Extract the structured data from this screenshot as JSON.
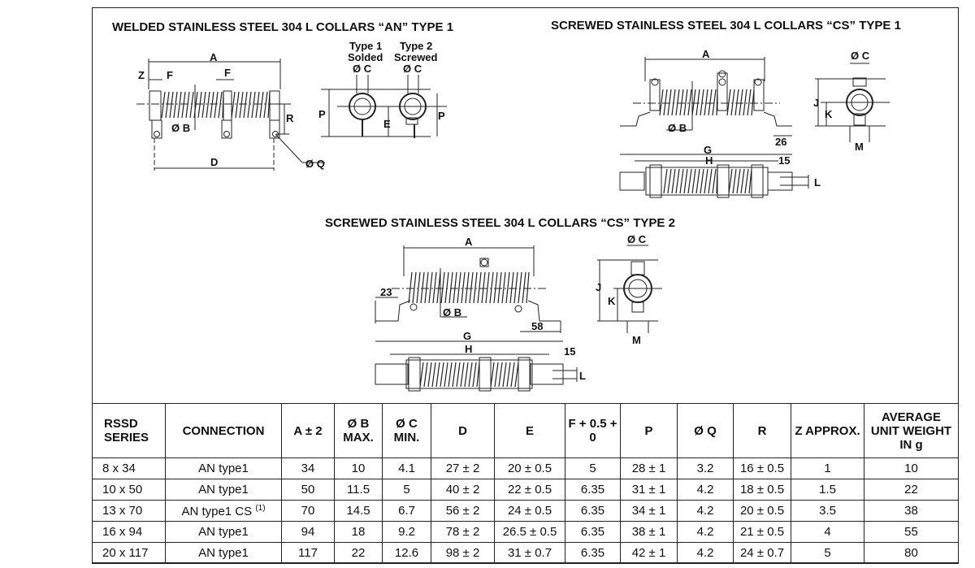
{
  "sections": {
    "an_type1": {
      "title": "WELDED STAINLESS STEEL 304 L COLLARS “AN” TYPE 1",
      "labels": {
        "A": "A",
        "Z": "Z",
        "F1": "F",
        "F2": "F",
        "R": "R",
        "B": "Ø B",
        "D": "D",
        "Q": "Ø Q",
        "P1": "P",
        "P2": "P",
        "E": "E",
        "type1": "Type 1",
        "solded": "Solded",
        "c1": "Ø C",
        "type2": "Type 2",
        "screwed": "Screwed",
        "c2": "Ø C"
      }
    },
    "cs_type1": {
      "title": "SCREWED STAINLESS STEEL 304 L COLLARS “CS” TYPE 1",
      "labels": {
        "A": "A",
        "B": "Ø B",
        "d26": "26",
        "G": "G",
        "H": "H",
        "d15": "15",
        "L": "L",
        "C": "Ø C",
        "J": "J",
        "K": "K",
        "M": "M"
      }
    },
    "cs_type2": {
      "title": "SCREWED STAINLESS STEEL 304 L COLLARS “CS” TYPE 2",
      "labels": {
        "A": "A",
        "d23": "23",
        "B": "Ø B",
        "d58": "58",
        "G": "G",
        "H": "H",
        "d15": "15",
        "L": "L",
        "C": "Ø C",
        "J": "J",
        "K": "K",
        "M": "M"
      }
    }
  },
  "table": {
    "headers": [
      "RSSD SERIES",
      "CONNECTION",
      "A ± 2",
      "Ø B MAX.",
      "Ø C MIN.",
      "D",
      "E",
      "F + 0.5 + 0",
      "P",
      "Ø Q",
      "R",
      "Z APPROX.",
      "AVERAGE UNIT WEIGHT IN g"
    ],
    "footnote_mark": "(1)",
    "rows": [
      [
        "8 x 34",
        "AN type1",
        "34",
        "10",
        "4.1",
        "27 ± 2",
        "20 ± 0.5",
        "5",
        "28 ± 1",
        "3.2",
        "16 ± 0.5",
        "1",
        "10"
      ],
      [
        "10 x 50",
        "AN type1",
        "50",
        "11.5",
        "5",
        "40 ± 2",
        "22 ± 0.5",
        "6.35",
        "31 ± 1",
        "4.2",
        "18 ± 0.5",
        "1.5",
        "22"
      ],
      [
        "13 x 70",
        "AN type1 CS",
        "70",
        "14.5",
        "6.7",
        "56 ± 2",
        "24 ± 0.5",
        "6.35",
        "34 ± 1",
        "4.2",
        "20 ± 0.5",
        "3.5",
        "38"
      ],
      [
        "16 x 94",
        "AN type1",
        "94",
        "18",
        "9.2",
        "78 ± 2",
        "26.5 ± 0.5",
        "6.35",
        "38 ± 1",
        "4.2",
        "21 ± 0.5",
        "4",
        "55"
      ],
      [
        "20 x 117",
        "AN type1",
        "117",
        "22",
        "12.6",
        "98 ± 2",
        "31 ± 0.7",
        "6.35",
        "42 ± 1",
        "4.2",
        "24 ± 0.7",
        "5",
        "80"
      ]
    ]
  }
}
